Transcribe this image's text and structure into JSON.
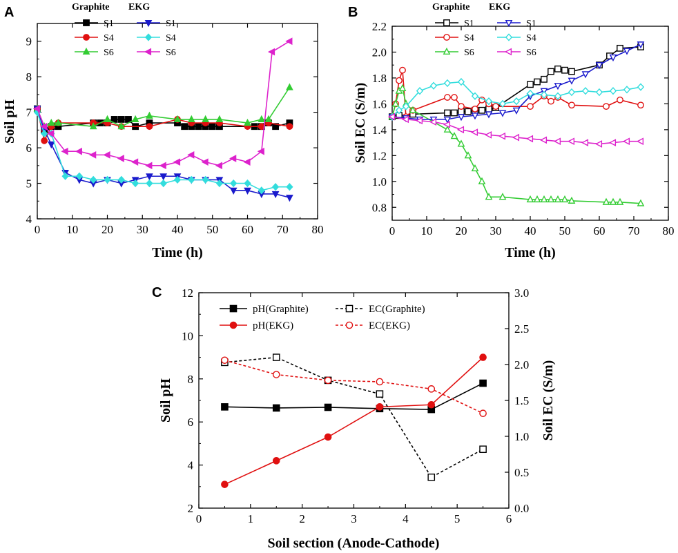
{
  "chart_data": [
    {
      "type": "line",
      "panel": "A",
      "xlabel": "Time (h)",
      "ylabel": "Soil pH",
      "xlim": [
        0,
        80
      ],
      "ylim": [
        4,
        9.5
      ],
      "xticks": [
        "0",
        "10",
        "20",
        "30",
        "40",
        "50",
        "60",
        "70",
        "80"
      ],
      "yticks": [
        "4",
        "5",
        "6",
        "7",
        "8",
        "9"
      ],
      "legend": {
        "head_left": "Graphite",
        "head_right": "EKG"
      },
      "series": [
        {
          "name": "S1",
          "group": "Graphite",
          "color": "#000000",
          "marker": "square",
          "filled": true,
          "x": [
            0,
            2,
            4,
            6,
            16,
            18,
            20,
            22,
            24,
            26,
            28,
            32,
            40,
            42,
            44,
            46,
            48,
            50,
            52,
            62,
            64,
            66,
            68,
            72
          ],
          "y": [
            7.1,
            6.5,
            6.6,
            6.6,
            6.7,
            6.7,
            6.7,
            6.8,
            6.8,
            6.8,
            6.6,
            6.7,
            6.7,
            6.6,
            6.6,
            6.6,
            6.6,
            6.6,
            6.6,
            6.6,
            6.6,
            6.7,
            6.6,
            6.7
          ]
        },
        {
          "name": "S4",
          "group": "Graphite",
          "color": "#e01010",
          "marker": "circle",
          "filled": true,
          "x": [
            0,
            2,
            4,
            6,
            16,
            20,
            24,
            32,
            40,
            44,
            48,
            52,
            60,
            64,
            66,
            72
          ],
          "y": [
            7.1,
            6.2,
            6.6,
            6.7,
            6.7,
            6.7,
            6.6,
            6.6,
            6.8,
            6.7,
            6.7,
            6.7,
            6.6,
            6.6,
            6.7,
            6.6
          ]
        },
        {
          "name": "S6",
          "group": "Graphite",
          "color": "#33cc33",
          "marker": "triangle-up",
          "filled": true,
          "x": [
            0,
            2,
            4,
            6,
            16,
            20,
            24,
            28,
            32,
            40,
            44,
            48,
            52,
            60,
            64,
            66,
            72
          ],
          "y": [
            7.1,
            6.6,
            6.7,
            6.7,
            6.6,
            6.8,
            6.6,
            6.8,
            6.9,
            6.8,
            6.8,
            6.8,
            6.8,
            6.7,
            6.8,
            6.8,
            7.7
          ]
        },
        {
          "name": "S1",
          "group": "EKG",
          "color": "#1a1acc",
          "marker": "triangle-down",
          "filled": true,
          "x": [
            0,
            2,
            4,
            8,
            12,
            16,
            20,
            24,
            28,
            32,
            36,
            40,
            44,
            48,
            52,
            56,
            60,
            64,
            68,
            72
          ],
          "y": [
            7.1,
            6.5,
            6.1,
            5.3,
            5.1,
            5.0,
            5.1,
            5.0,
            5.1,
            5.2,
            5.2,
            5.2,
            5.1,
            5.1,
            5.1,
            4.8,
            4.8,
            4.7,
            4.7,
            4.6
          ]
        },
        {
          "name": "S4",
          "group": "EKG",
          "color": "#33dddd",
          "marker": "diamond",
          "filled": true,
          "x": [
            0,
            2,
            4,
            8,
            12,
            16,
            20,
            24,
            28,
            32,
            36,
            40,
            44,
            48,
            52,
            56,
            60,
            64,
            68,
            72
          ],
          "y": [
            7.0,
            6.4,
            6.4,
            5.2,
            5.2,
            5.1,
            5.1,
            5.1,
            5.0,
            5.0,
            5.0,
            5.1,
            5.1,
            5.1,
            5.0,
            5.0,
            5.0,
            4.8,
            4.9,
            4.9
          ]
        },
        {
          "name": "S6",
          "group": "EKG",
          "color": "#dd22cc",
          "marker": "triangle-left",
          "filled": true,
          "x": [
            0,
            2,
            4,
            8,
            12,
            16,
            20,
            24,
            28,
            32,
            36,
            40,
            44,
            48,
            52,
            56,
            60,
            64,
            67,
            72
          ],
          "y": [
            7.1,
            6.6,
            6.4,
            5.9,
            5.9,
            5.8,
            5.8,
            5.7,
            5.6,
            5.5,
            5.5,
            5.6,
            5.8,
            5.6,
            5.5,
            5.7,
            5.6,
            5.9,
            8.7,
            9.0
          ]
        }
      ]
    },
    {
      "type": "line",
      "panel": "B",
      "xlabel": "Time (h)",
      "ylabel": "Soil EC (S/m)",
      "xlim": [
        0,
        80
      ],
      "ylim": [
        0.7,
        2.2
      ],
      "xticks": [
        "0",
        "10",
        "20",
        "30",
        "40",
        "50",
        "60",
        "70",
        "80"
      ],
      "yticks": [
        "0.8",
        "1.0",
        "1.2",
        "1.4",
        "1.6",
        "1.8",
        "2.0",
        "2.2"
      ],
      "legend": {
        "head_left": "Graphite",
        "head_right": "EKG"
      },
      "series": [
        {
          "name": "S1",
          "group": "Graphite",
          "color": "#000000",
          "marker": "square",
          "filled": false,
          "x": [
            0,
            2,
            6,
            16,
            18,
            20,
            22,
            24,
            26,
            28,
            30,
            40,
            42,
            44,
            46,
            48,
            50,
            52,
            60,
            63,
            66,
            72
          ],
          "y": [
            1.5,
            1.51,
            1.52,
            1.53,
            1.53,
            1.54,
            1.54,
            1.55,
            1.55,
            1.56,
            1.57,
            1.75,
            1.77,
            1.79,
            1.85,
            1.87,
            1.86,
            1.85,
            1.9,
            1.97,
            2.03,
            2.04
          ]
        },
        {
          "name": "S4",
          "group": "Graphite",
          "color": "#e01010",
          "marker": "circle",
          "filled": false,
          "x": [
            0,
            1,
            2,
            3,
            4,
            6,
            16,
            18,
            20,
            24,
            26,
            28,
            30,
            40,
            44,
            46,
            48,
            52,
            62,
            66,
            72
          ],
          "y": [
            1.5,
            1.6,
            1.78,
            1.86,
            1.5,
            1.55,
            1.65,
            1.65,
            1.58,
            1.56,
            1.63,
            1.6,
            1.58,
            1.58,
            1.66,
            1.62,
            1.65,
            1.59,
            1.58,
            1.63,
            1.59
          ]
        },
        {
          "name": "S6",
          "group": "Graphite",
          "color": "#33cc33",
          "marker": "triangle-up",
          "filled": false,
          "x": [
            0,
            1,
            2,
            3,
            4,
            6,
            16,
            18,
            20,
            22,
            24,
            26,
            28,
            32,
            40,
            42,
            44,
            46,
            48,
            50,
            52,
            62,
            64,
            66,
            72
          ],
          "y": [
            1.5,
            1.6,
            1.7,
            1.72,
            1.6,
            1.55,
            1.4,
            1.35,
            1.29,
            1.2,
            1.1,
            1.0,
            0.88,
            0.88,
            0.86,
            0.86,
            0.86,
            0.86,
            0.86,
            0.86,
            0.85,
            0.84,
            0.84,
            0.84,
            0.83
          ]
        },
        {
          "name": "S1",
          "group": "EKG",
          "color": "#1a1acc",
          "marker": "triangle-down",
          "filled": false,
          "x": [
            0,
            4,
            8,
            12,
            16,
            20,
            24,
            28,
            32,
            36,
            40,
            44,
            48,
            52,
            56,
            60,
            64,
            68,
            72
          ],
          "y": [
            1.5,
            1.49,
            1.48,
            1.48,
            1.48,
            1.5,
            1.51,
            1.52,
            1.53,
            1.55,
            1.66,
            1.7,
            1.74,
            1.78,
            1.83,
            1.9,
            1.96,
            2.01,
            2.06
          ]
        },
        {
          "name": "S4",
          "group": "EKG",
          "color": "#33dddd",
          "marker": "diamond",
          "filled": false,
          "x": [
            0,
            2,
            4,
            8,
            12,
            16,
            20,
            24,
            28,
            32,
            36,
            40,
            44,
            48,
            52,
            56,
            60,
            64,
            68,
            72
          ],
          "y": [
            1.5,
            1.55,
            1.58,
            1.7,
            1.74,
            1.76,
            1.77,
            1.66,
            1.62,
            1.6,
            1.62,
            1.68,
            1.67,
            1.66,
            1.69,
            1.7,
            1.69,
            1.7,
            1.71,
            1.73
          ]
        },
        {
          "name": "S6",
          "group": "EKG",
          "color": "#dd22cc",
          "marker": "triangle-left",
          "filled": false,
          "x": [
            0,
            4,
            8,
            12,
            16,
            20,
            24,
            28,
            32,
            36,
            40,
            44,
            48,
            52,
            56,
            60,
            64,
            68,
            72
          ],
          "y": [
            1.5,
            1.48,
            1.47,
            1.46,
            1.44,
            1.4,
            1.38,
            1.36,
            1.35,
            1.34,
            1.33,
            1.32,
            1.31,
            1.31,
            1.3,
            1.29,
            1.3,
            1.31,
            1.31
          ]
        }
      ]
    },
    {
      "type": "line",
      "panel": "C",
      "xlabel": "Soil section (Anode-Cathode)",
      "ylabel": "Soil pH",
      "ylabel_right": "Soil EC (S/m)",
      "xlim": [
        0,
        6
      ],
      "ylim": [
        2,
        12
      ],
      "ylim_right": [
        0,
        3.0
      ],
      "xticks": [
        "0",
        "1",
        "2",
        "3",
        "4",
        "5",
        "6"
      ],
      "yticks": [
        "2",
        "4",
        "6",
        "8",
        "10",
        "12"
      ],
      "yticks_right": [
        "0.0",
        "0.5",
        "1.0",
        "1.5",
        "2.0",
        "2.5",
        "3.0"
      ],
      "series": [
        {
          "name": "pH(Graphite)",
          "axis": "left",
          "color": "#000000",
          "marker": "square",
          "filled": true,
          "dash": false,
          "x": [
            0.5,
            1.5,
            2.5,
            3.5,
            4.5,
            5.5
          ],
          "y": [
            6.7,
            6.65,
            6.68,
            6.62,
            6.58,
            7.8
          ]
        },
        {
          "name": "pH(EKG)",
          "axis": "left",
          "color": "#e01010",
          "marker": "circle",
          "filled": true,
          "dash": false,
          "x": [
            0.5,
            1.5,
            2.5,
            3.5,
            4.5,
            5.5
          ],
          "y": [
            3.1,
            4.2,
            5.3,
            6.7,
            6.8,
            9.0
          ]
        },
        {
          "name": "EC(Graphite)",
          "axis": "right",
          "color": "#000000",
          "marker": "square",
          "filled": false,
          "dash": true,
          "x": [
            0.5,
            1.5,
            2.5,
            3.5,
            4.5,
            5.5
          ],
          "y": [
            2.03,
            2.1,
            1.78,
            1.59,
            0.43,
            0.82
          ]
        },
        {
          "name": "EC(EKG)",
          "axis": "right",
          "color": "#e01010",
          "marker": "circle",
          "filled": false,
          "dash": true,
          "x": [
            0.5,
            1.5,
            2.5,
            3.5,
            4.5,
            5.5
          ],
          "y": [
            2.06,
            1.86,
            1.78,
            1.76,
            1.66,
            1.32
          ]
        }
      ]
    }
  ]
}
